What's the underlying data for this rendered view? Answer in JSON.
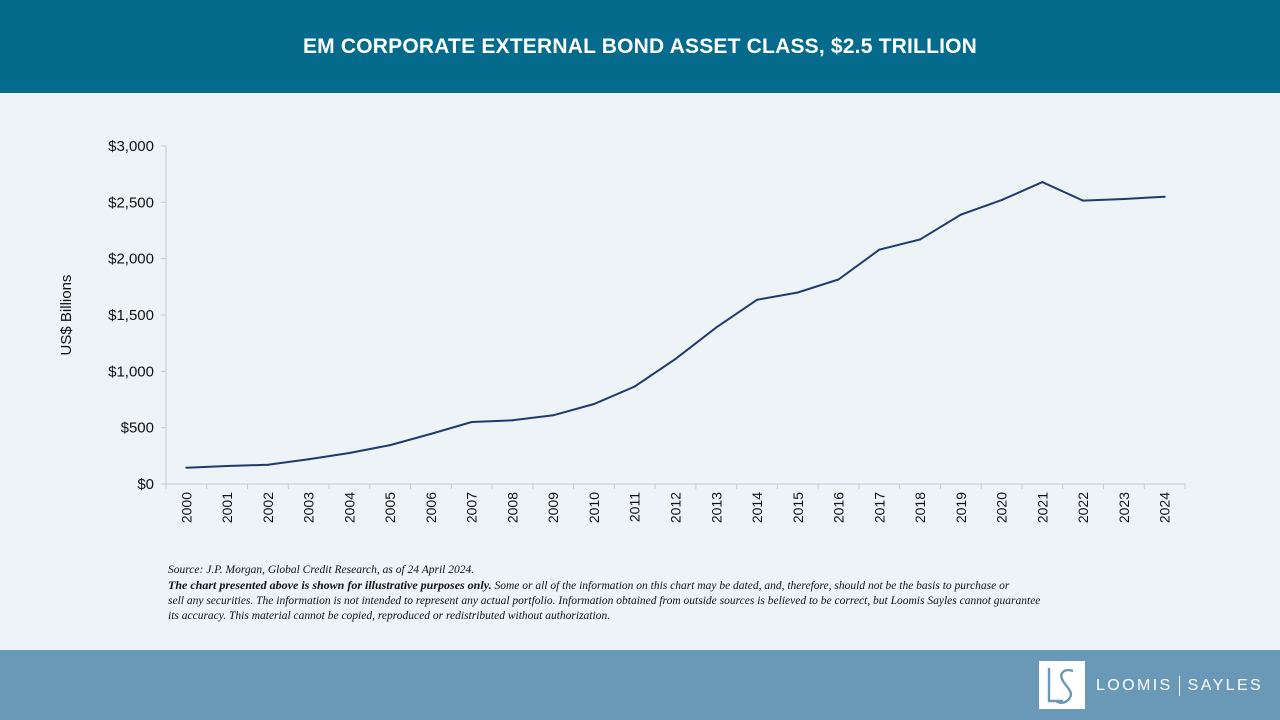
{
  "header": {
    "title": "EM CORPORATE EXTERNAL BOND ASSET CLASS, $2.5 TRILLION"
  },
  "colors": {
    "header_bg": "#046b8d",
    "footer_bg": "#6a99b8",
    "line": "#1f3a6b",
    "page_bg": "#eef3f8"
  },
  "chart_data": {
    "type": "line",
    "title": "",
    "xlabel": "",
    "ylabel": "US$ Billions",
    "ylim": [
      0,
      3000
    ],
    "yticks": [
      0,
      500,
      1000,
      1500,
      2000,
      2500,
      3000
    ],
    "ytick_labels": [
      "$0",
      "$500",
      "$1,000",
      "$1,500",
      "$2,000",
      "$2,500",
      "$3,000"
    ],
    "grid": false,
    "x": [
      "2000",
      "2001",
      "2002",
      "2003",
      "2004",
      "2005",
      "2006",
      "2007",
      "2008",
      "2009",
      "2010",
      "2011",
      "2012",
      "2013",
      "2014",
      "2015",
      "2016",
      "2017",
      "2018",
      "2019",
      "2020",
      "2021",
      "2022",
      "2023",
      "2024"
    ],
    "series": [
      {
        "values": [
          145,
          160,
          170,
          220,
          275,
          345,
          445,
          550,
          565,
          610,
          710,
          865,
          1110,
          1390,
          1635,
          1700,
          1815,
          2080,
          2170,
          2390,
          2520,
          2680,
          2515,
          2530,
          2550
        ]
      }
    ]
  },
  "notes": {
    "source": "Source: J.P. Morgan, Global Credit Research, as of  24 April 2024.",
    "disclaimer_bold": "The chart presented above is shown for illustrative purposes only.",
    "disclaimer_line1": " Some or all of  the information on this chart may be dated, and, therefore, should not be the basis to purchase or",
    "disclaimer_line2": "sell any securities. The information is not intended to represent any actual portfolio. Information obtained from outside sources is believed to be correct, but Loomis Sayles cannot guarantee",
    "disclaimer_line3": "its accuracy. This material cannot be copied, reproduced or redistributed without authorization."
  },
  "footer": {
    "logo_name_left": "LOOMIS",
    "logo_name_right": "SAYLES",
    "logo_icon": "ls-monogram-icon"
  }
}
